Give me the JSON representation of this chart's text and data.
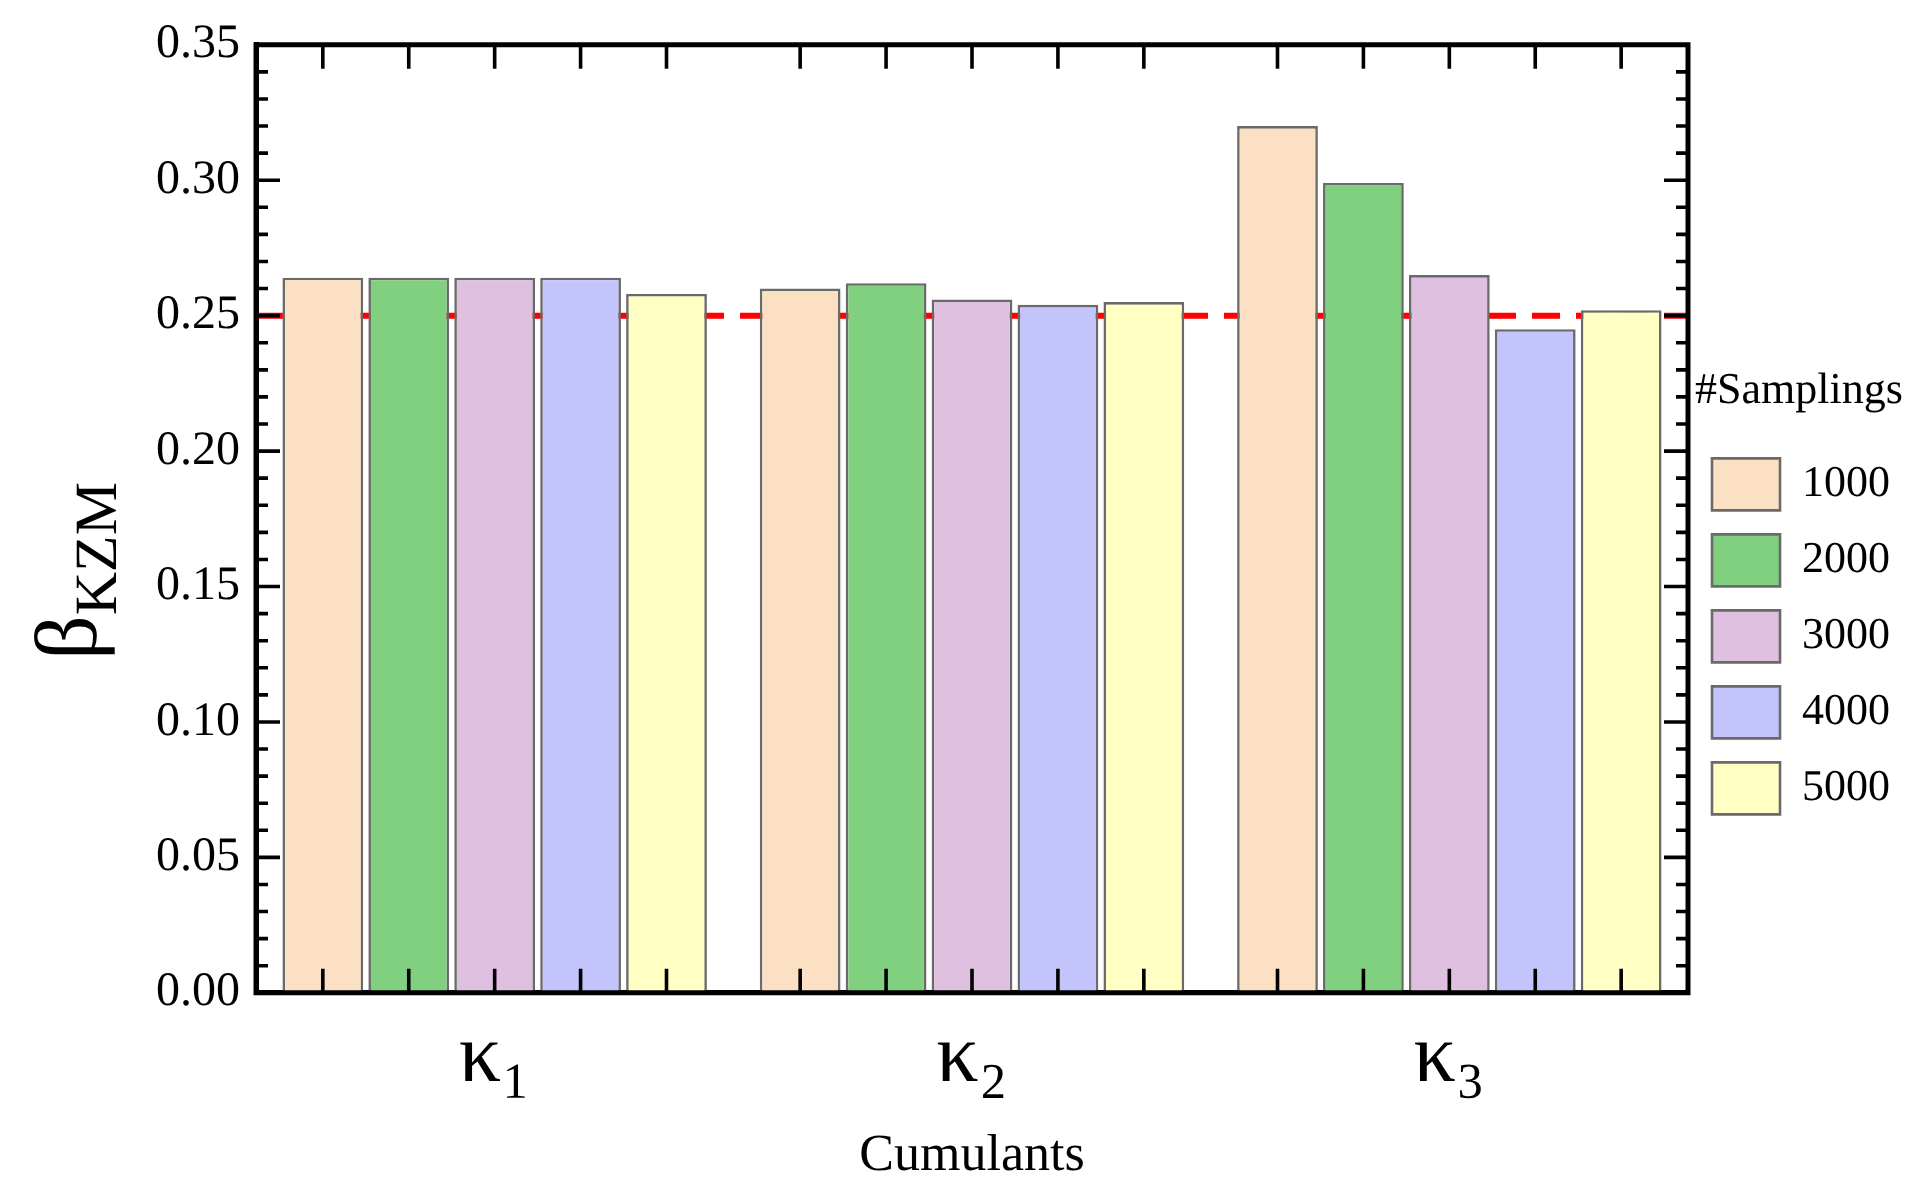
{
  "chart_data": {
    "type": "bar",
    "xlabel": "Cumulants",
    "ylabel": "β$_{KZM}$",
    "legend_title": "#Samplings",
    "categories": [
      "κ₁",
      "κ₂",
      "κ₃"
    ],
    "series": [
      {
        "name": "1000",
        "color": "#fce0c4",
        "values": [
          0.264,
          0.26,
          0.32
        ]
      },
      {
        "name": "2000",
        "color": "#80d080",
        "values": [
          0.264,
          0.262,
          0.299
        ]
      },
      {
        "name": "3000",
        "color": "#e0c0e0",
        "values": [
          0.264,
          0.256,
          0.265
        ]
      },
      {
        "name": "4000",
        "color": "#c4c4fc",
        "values": [
          0.264,
          0.254,
          0.245
        ]
      },
      {
        "name": "5000",
        "color": "#ffffc4",
        "values": [
          0.258,
          0.255,
          0.252
        ]
      }
    ],
    "ylim": [
      0,
      0.35
    ],
    "yticks": [
      {
        "value": 0,
        "label": "0.00"
      },
      {
        "value": 0.05,
        "label": "0.05"
      },
      {
        "value": 0.1,
        "label": "0.10"
      },
      {
        "value": 0.15,
        "label": "0.15"
      },
      {
        "value": 0.2,
        "label": "0.20"
      },
      {
        "value": 0.25,
        "label": "0.25"
      },
      {
        "value": 0.3,
        "label": "0.30"
      },
      {
        "value": 0.35,
        "label": "0.35"
      }
    ],
    "ref_lines": [
      {
        "axis": "y",
        "value": 0.25,
        "color": "#ff0000",
        "line_style": "dashed"
      }
    ],
    "grid": false,
    "legend": "right"
  }
}
